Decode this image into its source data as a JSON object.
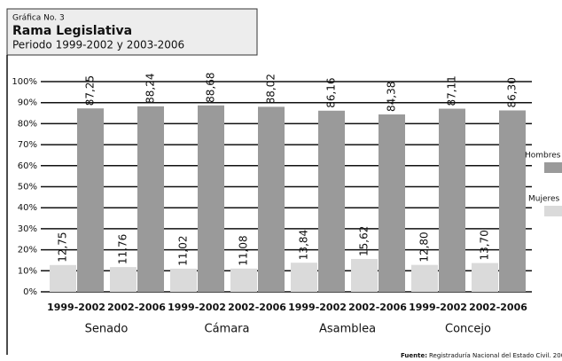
{
  "chart_data": {
    "type": "bar",
    "header": {
      "number": "Gráfica No. 3",
      "title": "Rama Legislativa",
      "subtitle": "Periodo 1999-2002 y 2003-2006"
    },
    "categories": [
      "1999-2002",
      "2002-2006",
      "1999-2002",
      "2002-2006",
      "1999-2002",
      "2002-2006",
      "1999-2002",
      "2002-2006"
    ],
    "groups": [
      "Senado",
      "Cámara",
      "Asamblea",
      "Concejo"
    ],
    "series": [
      {
        "name": "Mujeres",
        "color": "#dadada",
        "values": [
          12.75,
          11.76,
          11.02,
          11.08,
          13.84,
          15.62,
          12.8,
          13.7
        ],
        "value_labels": [
          "12,75",
          "11,76",
          "11,02",
          "11,08",
          "13,84",
          "15,62",
          "12,80",
          "13,70"
        ]
      },
      {
        "name": "Hombres",
        "color": "#9a9a9a",
        "values": [
          87.25,
          88.24,
          88.68,
          88.02,
          86.16,
          84.38,
          87.11,
          86.3
        ],
        "value_labels": [
          "87,25",
          "88,24",
          "88,68",
          "88,02",
          "86,16",
          "84,38",
          "87,11",
          "86,30"
        ]
      }
    ],
    "ylim": [
      0,
      100
    ],
    "yticks": [
      {
        "value": 0,
        "label": "0%"
      },
      {
        "value": 10,
        "label": "10%"
      },
      {
        "value": 20,
        "label": "20%"
      },
      {
        "value": 30,
        "label": "30%"
      },
      {
        "value": 40,
        "label": "40%"
      },
      {
        "value": 50,
        "label": "50%"
      },
      {
        "value": 60,
        "label": "60%"
      },
      {
        "value": 70,
        "label": "70%"
      },
      {
        "value": 80,
        "label": "80%"
      },
      {
        "value": 90,
        "label": "90%"
      },
      {
        "value": 100,
        "label": "100%"
      }
    ],
    "grid": true,
    "source": {
      "label": "Fuente:",
      "text": "Registraduría Nacional del Estado Civil. 2002-2003"
    }
  }
}
